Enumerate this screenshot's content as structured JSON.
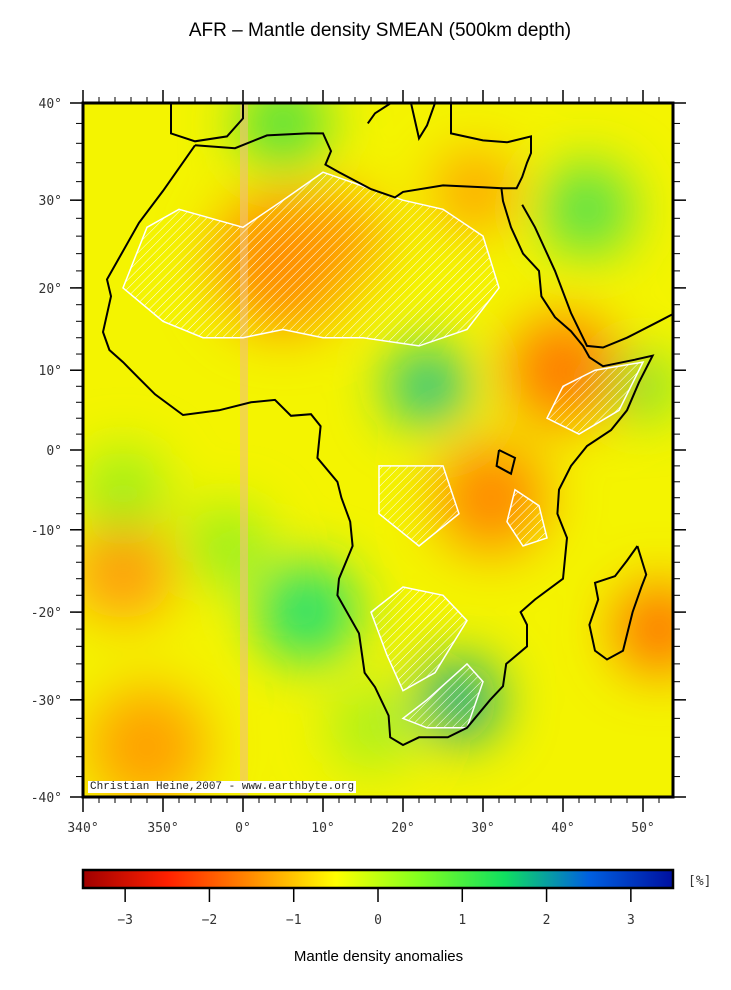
{
  "title": "AFR – Mantle density SMEAN (500km depth)",
  "map": {
    "lon_range": [
      340,
      53.75
    ],
    "lat_range": [
      -40,
      40
    ],
    "projection": "mercator",
    "lon_ticks": [
      "340°",
      "350°",
      "0°",
      "10°",
      "20°",
      "30°",
      "40°",
      "50°"
    ],
    "lat_ticks": [
      "40°",
      "30°",
      "20°",
      "10°",
      "0°",
      "-10°",
      "-20°",
      "-30°",
      "-40°"
    ],
    "credit": "Christian Heine,2007 - www.earthbyte.org"
  },
  "colorbar": {
    "range": [
      -3.5,
      3.5
    ],
    "ticks": [
      "-3",
      "-2",
      "-1",
      "0",
      "1",
      "2",
      "3"
    ],
    "unit": "[%]",
    "label": "Mantle density anomalies",
    "colors": [
      "#a00000",
      "#ff2000",
      "#ff8c00",
      "#ffff00",
      "#80ff20",
      "#10e060",
      "#0060e0",
      "#0010a0"
    ]
  }
}
